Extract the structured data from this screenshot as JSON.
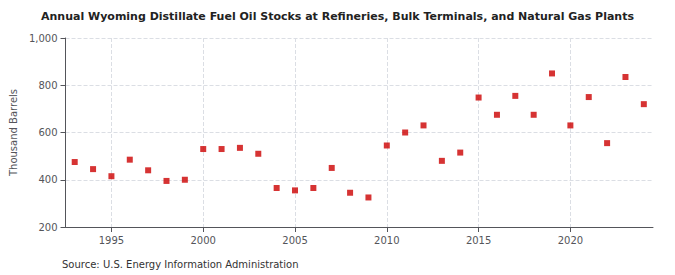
{
  "chart_data": {
    "type": "scatter",
    "title": "Annual Wyoming Distillate Fuel Oil Stocks at Refineries, Bulk Terminals, and Natural Gas Plants",
    "ylabel": "Thousand Barrels",
    "annotations": [
      "Source: U.S. Energy Information Administration"
    ],
    "x": [
      1993,
      1994,
      1995,
      1996,
      1997,
      1998,
      1999,
      2000,
      2001,
      2002,
      2003,
      2004,
      2005,
      2006,
      2007,
      2008,
      2009,
      2010,
      2011,
      2012,
      2013,
      2014,
      2015,
      2016,
      2017,
      2018,
      2019,
      2020,
      2021,
      2022,
      2023,
      2024
    ],
    "values": [
      475,
      445,
      415,
      485,
      440,
      395,
      400,
      530,
      530,
      535,
      510,
      365,
      355,
      365,
      450,
      345,
      325,
      545,
      600,
      630,
      480,
      515,
      748,
      675,
      755,
      675,
      850,
      630,
      750,
      555,
      835,
      720
    ],
    "color": "#cc0000",
    "marker": "square",
    "xlim": [
      1992.5,
      2024.5
    ],
    "xticks": [
      1995,
      2000,
      2005,
      2010,
      2015,
      2020
    ],
    "ylim": [
      200,
      1000
    ],
    "yticks": [
      200,
      400,
      600,
      800,
      {
        "value": 1000,
        "label": "1,000"
      }
    ],
    "grid": true
  }
}
